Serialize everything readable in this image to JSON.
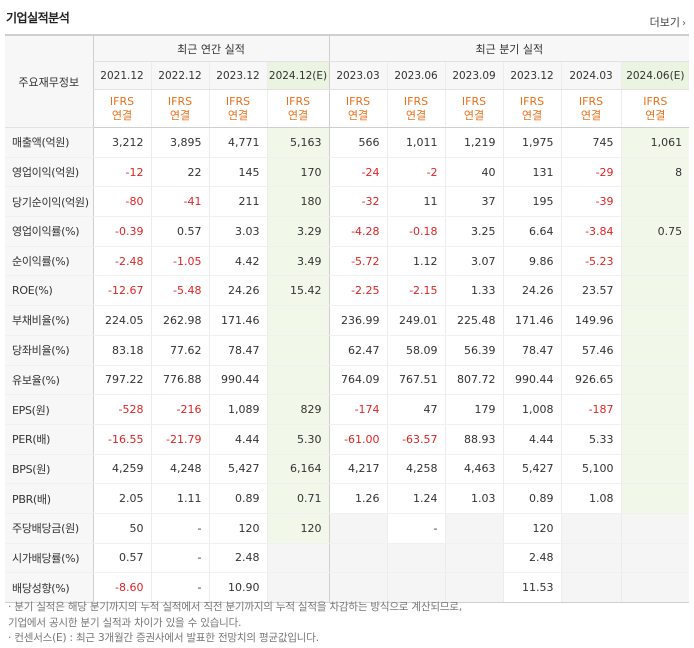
{
  "title": "기업실적분석",
  "more_label": "더보기",
  "header": {
    "label_col": "주요재무정보",
    "group_annual": "최근 연간 실적",
    "group_quarter": "최근 분기 실적",
    "periods": [
      "2021.12",
      "2022.12",
      "2023.12",
      "2024.12(E)",
      "2023.03",
      "2023.06",
      "2023.09",
      "2023.12",
      "2024.03",
      "2024.06(E)"
    ],
    "ifrs_line1": "IFRS",
    "ifrs_line2": "연결"
  },
  "rows": [
    {
      "label": "매출액(억원)",
      "values": [
        "3,212",
        "3,895",
        "4,771",
        "5,163",
        "566",
        "1,011",
        "1,219",
        "1,975",
        "745",
        "1,061"
      ]
    },
    {
      "label": "영업이익(억원)",
      "values": [
        "-12",
        "22",
        "145",
        "170",
        "-24",
        "-2",
        "40",
        "131",
        "-29",
        "8"
      ]
    },
    {
      "label": "당기순이익(억원)",
      "values": [
        "-80",
        "-41",
        "211",
        "180",
        "-32",
        "11",
        "37",
        "195",
        "-39",
        ""
      ]
    },
    {
      "label": "영업이익률(%)",
      "values": [
        "-0.39",
        "0.57",
        "3.03",
        "3.29",
        "-4.28",
        "-0.18",
        "3.25",
        "6.64",
        "-3.84",
        "0.75"
      ]
    },
    {
      "label": "순이익률(%)",
      "values": [
        "-2.48",
        "-1.05",
        "4.42",
        "3.49",
        "-5.72",
        "1.12",
        "3.07",
        "9.86",
        "-5.23",
        ""
      ]
    },
    {
      "label": "ROE(%)",
      "values": [
        "-12.67",
        "-5.48",
        "24.26",
        "15.42",
        "-2.25",
        "-2.15",
        "1.33",
        "24.26",
        "23.57",
        ""
      ]
    },
    {
      "label": "부채비율(%)",
      "values": [
        "224.05",
        "262.98",
        "171.46",
        "",
        "236.99",
        "249.01",
        "225.48",
        "171.46",
        "149.96",
        ""
      ]
    },
    {
      "label": "당좌비율(%)",
      "values": [
        "83.18",
        "77.62",
        "78.47",
        "",
        "62.47",
        "58.09",
        "56.39",
        "78.47",
        "57.46",
        ""
      ]
    },
    {
      "label": "유보율(%)",
      "values": [
        "797.22",
        "776.88",
        "990.44",
        "",
        "764.09",
        "767.51",
        "807.72",
        "990.44",
        "926.65",
        ""
      ]
    },
    {
      "label": "EPS(원)",
      "values": [
        "-528",
        "-216",
        "1,089",
        "829",
        "-174",
        "47",
        "179",
        "1,008",
        "-187",
        ""
      ]
    },
    {
      "label": "PER(배)",
      "values": [
        "-16.55",
        "-21.79",
        "4.44",
        "5.30",
        "-61.00",
        "-63.57",
        "88.93",
        "4.44",
        "5.33",
        ""
      ]
    },
    {
      "label": "BPS(원)",
      "values": [
        "4,259",
        "4,248",
        "5,427",
        "6,164",
        "4,217",
        "4,258",
        "4,463",
        "5,427",
        "5,100",
        ""
      ]
    },
    {
      "label": "PBR(배)",
      "values": [
        "2.05",
        "1.11",
        "0.89",
        "0.71",
        "1.26",
        "1.24",
        "1.03",
        "0.89",
        "1.08",
        ""
      ]
    },
    {
      "label": "주당배당금(원)",
      "values": [
        "50",
        "-",
        "120",
        "120",
        "",
        "-",
        "",
        "120",
        "",
        ""
      ]
    },
    {
      "label": "시가배당률(%)",
      "values": [
        "0.57",
        "-",
        "2.48",
        "",
        "",
        "",
        "",
        "2.48",
        "",
        ""
      ]
    },
    {
      "label": "배당성향(%)",
      "values": [
        "-8.60",
        "-",
        "10.90",
        "",
        "",
        "",
        "",
        "11.53",
        "",
        ""
      ]
    }
  ],
  "notes": [
    "· 분기 실적은 해당 분기까지의 누적 실적에서 직전 분기까지의 누적 실적을 차감하는 방식으로 계산되므로,",
    "  기업에서 공시한 분기 실적과 차이가 있을 수 있습니다.",
    "· 컨센서스(E) : 최근 3개월간 증권사에서 발표한 전망치의 평균값입니다."
  ],
  "colors": {
    "negative": "#e02424",
    "ifrs": "#e8701a",
    "estimate_bg": "#f1f8ea"
  }
}
